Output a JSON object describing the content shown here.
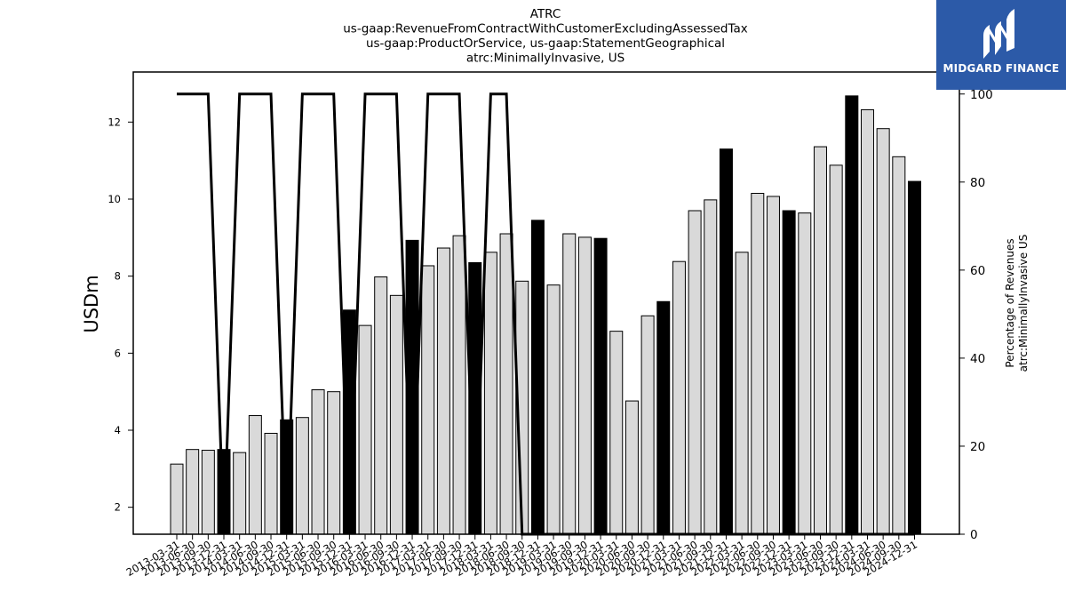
{
  "chart_data": {
    "type": "bar",
    "title_lines": [
      "ATRC",
      "us-gaap:RevenueFromContractWithCustomerExcludingAssessedTax",
      "us-gaap:ProductOrService, us-gaap:StatementGeographical",
      "atrc:MinimallyInvasive, US"
    ],
    "ylabel": "USDm",
    "y2label_lines": [
      "Percentage of Revenues",
      "atrc:MinimallyInvasive US"
    ],
    "ylim": [
      1.3,
      13.3
    ],
    "y2lim": [
      0,
      105
    ],
    "yticks": [
      2,
      4,
      6,
      8,
      10,
      12
    ],
    "y2ticks": [
      0,
      20,
      40,
      60,
      80,
      100
    ],
    "categories": [
      "2013-03-31",
      "2013-06-30",
      "2013-09-30",
      "2013-12-31",
      "2014-03-31",
      "2014-06-30",
      "2014-09-30",
      "2014-12-31",
      "2015-03-31",
      "2015-06-30",
      "2015-09-30",
      "2015-12-31",
      "2016-03-31",
      "2016-06-30",
      "2016-09-30",
      "2016-12-31",
      "2017-03-31",
      "2017-06-30",
      "2017-09-30",
      "2017-12-31",
      "2018-03-31",
      "2018-06-30",
      "2018-09-30",
      "2018-12-31",
      "2019-03-31",
      "2019-06-30",
      "2019-09-30",
      "2019-12-31",
      "2020-03-31",
      "2020-06-30",
      "2020-09-30",
      "2020-12-31",
      "2021-03-31",
      "2021-06-30",
      "2021-09-30",
      "2021-12-31",
      "2022-03-31",
      "2022-06-30",
      "2022-09-30",
      "2022-12-31",
      "2023-03-31",
      "2023-06-30",
      "2023-09-30",
      "2023-12-31",
      "2024-03-31",
      "2024-06-30",
      "2024-09-30",
      "2024-12-31"
    ],
    "series": [
      {
        "values": [
          3.12,
          3.5,
          3.48,
          3.5,
          3.42,
          4.38,
          3.92,
          4.27,
          4.33,
          5.05,
          5.0,
          7.12,
          6.72,
          7.98,
          7.5,
          8.93,
          8.27,
          8.73,
          9.05,
          8.35,
          8.62,
          9.1,
          7.87,
          9.45,
          7.77,
          9.1,
          9.01,
          8.98,
          6.57,
          4.76,
          6.97,
          7.34,
          8.38,
          9.7,
          9.98,
          11.3,
          8.62,
          10.15,
          10.07,
          9.7,
          9.64,
          11.36,
          10.88,
          12.68,
          12.32,
          11.83,
          11.1,
          10.46
        ],
        "highlight": [
          false,
          false,
          false,
          true,
          false,
          false,
          false,
          true,
          false,
          false,
          false,
          true,
          false,
          false,
          false,
          true,
          false,
          false,
          false,
          true,
          false,
          false,
          false,
          true,
          false,
          false,
          false,
          true,
          false,
          false,
          false,
          true,
          false,
          false,
          false,
          true,
          false,
          false,
          false,
          true,
          false,
          false,
          false,
          true,
          false,
          false,
          false,
          true
        ]
      },
      {
        "axis": "right",
        "type": "line",
        "values": [
          100,
          100,
          100,
          0,
          100,
          100,
          100,
          0,
          100,
          100,
          100,
          0,
          100,
          100,
          100,
          0,
          100,
          100,
          100,
          0,
          100,
          100,
          0,
          0,
          0,
          0,
          0,
          0,
          0,
          0,
          0,
          0,
          0,
          0,
          0,
          0,
          0,
          0,
          0,
          0,
          0,
          0,
          0,
          0,
          0,
          0,
          0,
          0
        ]
      }
    ],
    "colors": {
      "bar": "#d9d9d9",
      "bar_highlight": "#000000",
      "line": "#000000",
      "edge": "#000000"
    }
  },
  "logo": {
    "text": "MIDGARD FINANCE",
    "bg": "#2c5aa8"
  }
}
